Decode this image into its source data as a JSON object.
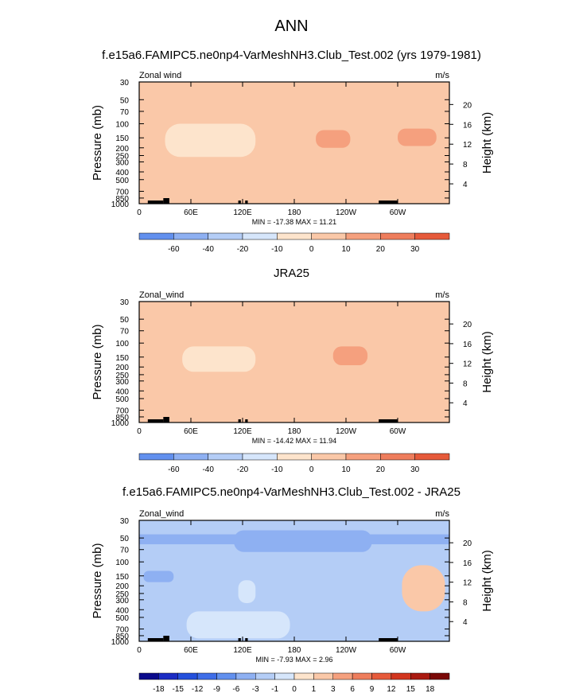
{
  "page_title": "ANN",
  "chart_data": [
    {
      "type": "heatmap",
      "title": "f.e15a6.FAMIPC5.ne0np4-VarMeshNH3.Club_Test.002 (yrs 1979-1981)",
      "left_label": "Zonal wind",
      "units": "m/s",
      "xlabel": "",
      "ylabel": "Pressure (mb)",
      "y2label": "Height (km)",
      "x_ticks": [
        "0",
        "60E",
        "120E",
        "180",
        "120W",
        "60W"
      ],
      "x_tick_lon": [
        0,
        60,
        120,
        180,
        240,
        300
      ],
      "xlim": [
        0,
        360
      ],
      "y_ticks": [
        "30",
        "50",
        "70",
        "100",
        "150",
        "200",
        "250",
        "300",
        "400",
        "500",
        "700",
        "850",
        "1000"
      ],
      "y_tick_p": [
        30,
        50,
        70,
        100,
        150,
        200,
        250,
        300,
        400,
        500,
        700,
        850,
        1000
      ],
      "ylim": [
        30,
        1000
      ],
      "y2_ticks": [
        "4",
        "8",
        "12",
        "16",
        "20"
      ],
      "y2_tick_km": [
        4,
        8,
        12,
        16,
        20
      ],
      "stats": "MIN = -17.38  MAX =  11.21",
      "min": -17.38,
      "max": 11.21,
      "levels": [
        "-60",
        "-40",
        "-20",
        "-10",
        "0",
        "10",
        "20",
        "30"
      ],
      "palette": [
        "#0a0a8c",
        "#1b2cc4",
        "#2450dc",
        "#3f6ee8",
        "#6290ee",
        "#8eb0f2",
        "#b4cdf6",
        "#d6e6fb",
        "#fde4cc",
        "#fac8a8",
        "#f5a07e",
        "#ee7d5c",
        "#e65a3a",
        "#d2351e",
        "#aa1a10",
        "#7a0806"
      ],
      "contours": [
        {
          "value": 0,
          "lon": [
            0,
            360
          ],
          "p": [
            30,
            1000
          ]
        },
        {
          "value": 5,
          "lon": [
            195,
            360
          ],
          "p": [
            75,
            380
          ]
        },
        {
          "value": 5,
          "lon": [
            5,
            175
          ],
          "p": [
            520,
            950
          ]
        },
        {
          "value": 10,
          "lon": [
            205,
            245
          ],
          "p": [
            120,
            200
          ]
        },
        {
          "value": 10,
          "lon": [
            300,
            345
          ],
          "p": [
            115,
            190
          ]
        },
        {
          "value": -5,
          "lon": [
            30,
            135
          ],
          "p": [
            100,
            260
          ]
        },
        {
          "value": -10,
          "lon": [
            50,
            110
          ],
          "p": [
            130,
            190
          ]
        }
      ]
    },
    {
      "type": "heatmap",
      "title": "JRA25",
      "left_label": "Zonal_wind",
      "units": "m/s",
      "xlabel": "",
      "ylabel": "Pressure (mb)",
      "y2label": "Height (km)",
      "x_ticks": [
        "0",
        "60E",
        "120E",
        "180",
        "120W",
        "60W"
      ],
      "x_tick_lon": [
        0,
        60,
        120,
        180,
        240,
        300
      ],
      "xlim": [
        0,
        360
      ],
      "y_ticks": [
        "30",
        "50",
        "70",
        "100",
        "150",
        "200",
        "250",
        "300",
        "400",
        "500",
        "700",
        "850",
        "1000"
      ],
      "y_tick_p": [
        30,
        50,
        70,
        100,
        150,
        200,
        250,
        300,
        400,
        500,
        700,
        850,
        1000
      ],
      "ylim": [
        30,
        1000
      ],
      "y2_ticks": [
        "4",
        "8",
        "12",
        "16",
        "20"
      ],
      "y2_tick_km": [
        4,
        8,
        12,
        16,
        20
      ],
      "stats": "MIN = -14.42  MAX =  11.94",
      "min": -14.42,
      "max": 11.94,
      "levels": [
        "-60",
        "-40",
        "-20",
        "-10",
        "0",
        "10",
        "20",
        "30"
      ],
      "palette": [
        "#0a0a8c",
        "#1b2cc4",
        "#2450dc",
        "#3f6ee8",
        "#6290ee",
        "#8eb0f2",
        "#b4cdf6",
        "#d6e6fb",
        "#fde4cc",
        "#fac8a8",
        "#f5a07e",
        "#ee7d5c",
        "#e65a3a",
        "#d2351e",
        "#aa1a10",
        "#7a0806"
      ],
      "contours": [
        {
          "value": 0,
          "lon": [
            0,
            360
          ],
          "p": [
            30,
            1000
          ]
        },
        {
          "value": 5,
          "lon": [
            200,
            350
          ],
          "p": [
            65,
            330
          ]
        },
        {
          "value": 10,
          "lon": [
            225,
            265
          ],
          "p": [
            110,
            190
          ]
        },
        {
          "value": -5,
          "lon": [
            50,
            135
          ],
          "p": [
            110,
            230
          ]
        },
        {
          "value": 5,
          "lon": [
            10,
            120
          ],
          "p": [
            520,
            900
          ]
        }
      ]
    },
    {
      "type": "heatmap",
      "title": "f.e15a6.FAMIPC5.ne0np4-VarMeshNH3.Club_Test.002 - JRA25",
      "left_label": "Zonal_wind",
      "units": "m/s",
      "xlabel": "",
      "ylabel": "Pressure (mb)",
      "y2label": "Height (km)",
      "x_ticks": [
        "0",
        "60E",
        "120E",
        "180",
        "120W",
        "60W"
      ],
      "x_tick_lon": [
        0,
        60,
        120,
        180,
        240,
        300
      ],
      "xlim": [
        0,
        360
      ],
      "y_ticks": [
        "30",
        "50",
        "70",
        "100",
        "150",
        "200",
        "250",
        "300",
        "400",
        "500",
        "700",
        "850",
        "1000"
      ],
      "y_tick_p": [
        30,
        50,
        70,
        100,
        150,
        200,
        250,
        300,
        400,
        500,
        700,
        850,
        1000
      ],
      "ylim": [
        30,
        1000
      ],
      "y2_ticks": [
        "4",
        "8",
        "12",
        "16",
        "20"
      ],
      "y2_tick_km": [
        4,
        8,
        12,
        16,
        20
      ],
      "stats": "MIN = -7.93  MAX =  2.96",
      "min": -7.93,
      "max": 2.96,
      "levels": [
        "-18",
        "-15",
        "-12",
        "-9",
        "-6",
        "-3",
        "-1",
        "0",
        "1",
        "3",
        "6",
        "9",
        "12",
        "15",
        "18"
      ],
      "palette": [
        "#0a0a8c",
        "#1b2cc4",
        "#2450dc",
        "#3f6ee8",
        "#6290ee",
        "#8eb0f2",
        "#b4cdf6",
        "#d6e6fb",
        "#fde4cc",
        "#fac8a8",
        "#f5a07e",
        "#ee7d5c",
        "#e65a3a",
        "#d2351e",
        "#aa1a10",
        "#7a0806"
      ],
      "contours": [
        {
          "value": -3,
          "lon": [
            0,
            360
          ],
          "p": [
            30,
            1000
          ]
        },
        {
          "value": -6,
          "lon": [
            0,
            360
          ],
          "p": [
            45,
            60
          ]
        },
        {
          "value": -6,
          "lon": [
            110,
            270
          ],
          "p": [
            40,
            75
          ]
        },
        {
          "value": -1,
          "lon": [
            115,
            135
          ],
          "p": [
            170,
            330
          ]
        },
        {
          "value": 1,
          "lon": [
            305,
            355
          ],
          "p": [
            110,
            420
          ]
        },
        {
          "value": -1,
          "lon": [
            55,
            175
          ],
          "p": [
            420,
            920
          ]
        },
        {
          "value": -6,
          "lon": [
            5,
            40
          ],
          "p": [
            130,
            180
          ]
        }
      ]
    }
  ]
}
